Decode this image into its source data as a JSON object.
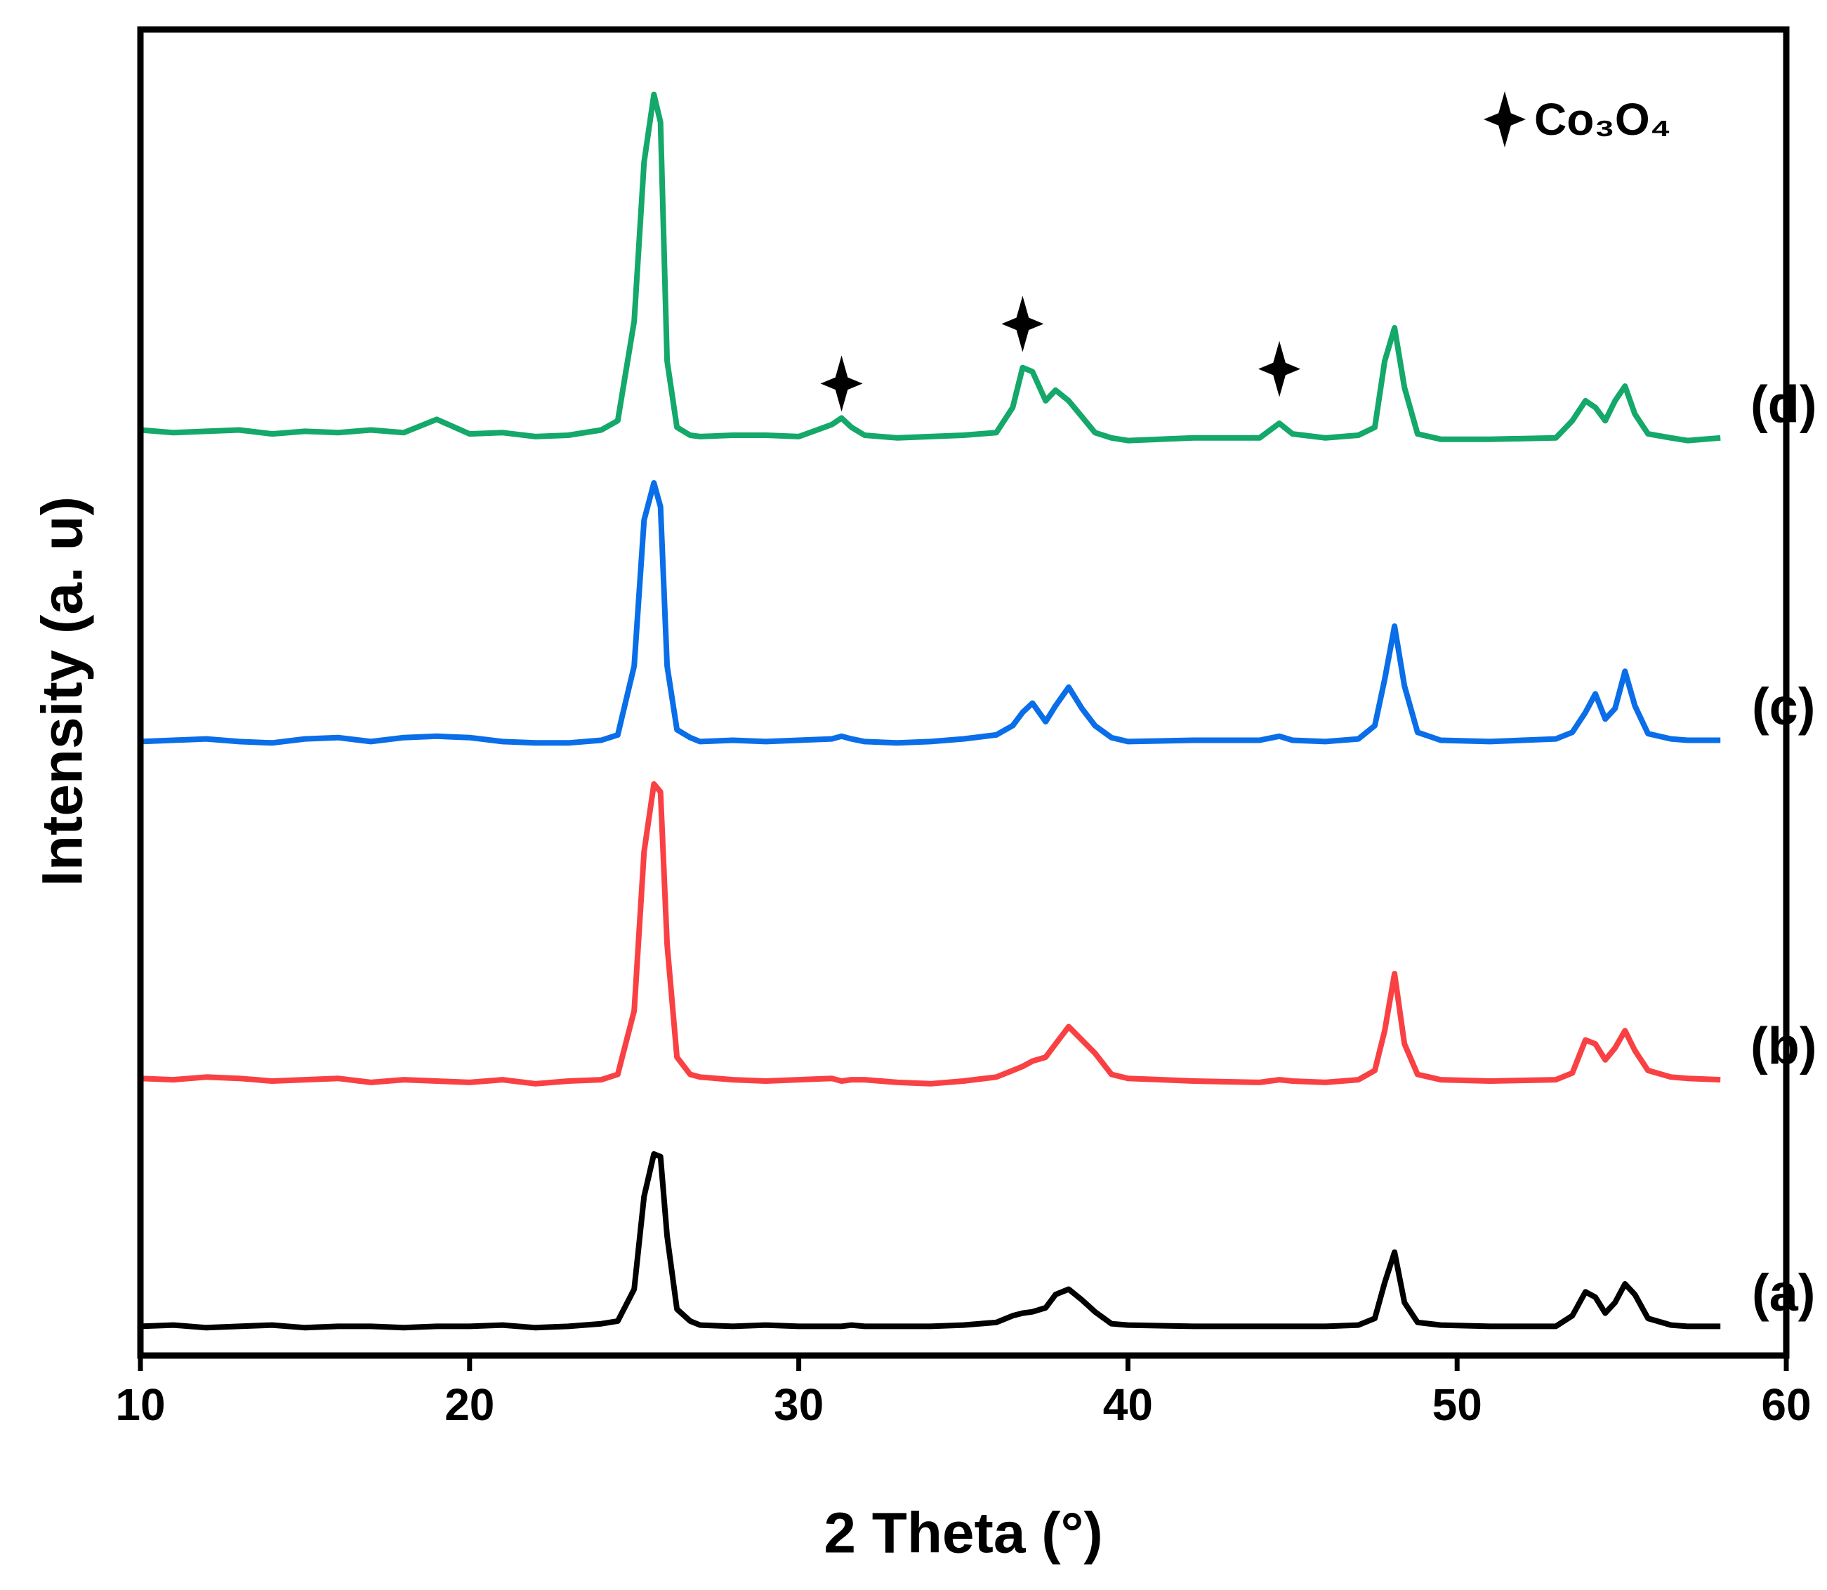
{
  "chart_data": {
    "type": "line",
    "xlabel": "2 Theta (°)",
    "ylabel": "Intensity (a. u)",
    "xlim": [
      10,
      60
    ],
    "xticks": [
      10,
      20,
      30,
      40,
      50,
      60
    ],
    "ylim": [
      0,
      100
    ],
    "x": [
      10,
      11,
      12,
      13,
      14,
      15,
      16,
      17,
      18,
      19,
      20,
      21,
      22,
      23,
      24,
      24.5,
      25,
      25.3,
      25.6,
      25.8,
      26,
      26.3,
      26.7,
      27,
      28,
      29,
      30,
      31,
      31.3,
      31.6,
      32,
      33,
      34,
      35,
      36,
      36.5,
      36.8,
      37.1,
      37.5,
      37.8,
      38.2,
      38.6,
      39,
      39.5,
      40,
      42,
      44,
      44.6,
      45,
      46,
      47,
      47.5,
      47.8,
      48.1,
      48.4,
      48.8,
      49.5,
      51,
      53,
      53.5,
      53.9,
      54.2,
      54.5,
      54.8,
      55.1,
      55.4,
      55.8,
      56.5,
      57,
      58
    ],
    "series": [
      {
        "name": "(a)",
        "color": "#000000",
        "values": [
          2.2,
          2.3,
          2.1,
          2.2,
          2.3,
          2.1,
          2.2,
          2.2,
          2.1,
          2.2,
          2.2,
          2.3,
          2.1,
          2.2,
          2.4,
          2.6,
          5,
          12,
          15.2,
          15,
          9,
          3.5,
          2.6,
          2.3,
          2.2,
          2.3,
          2.2,
          2.2,
          2.2,
          2.3,
          2.2,
          2.2,
          2.2,
          2.3,
          2.5,
          3.0,
          3.2,
          3.3,
          3.6,
          4.6,
          5.0,
          4.2,
          3.3,
          2.4,
          2.3,
          2.2,
          2.2,
          2.2,
          2.2,
          2.2,
          2.3,
          2.8,
          5.5,
          7.8,
          4.0,
          2.5,
          2.3,
          2.2,
          2.2,
          3.0,
          4.8,
          4.4,
          3.2,
          4.0,
          5.4,
          4.6,
          2.8,
          2.3,
          2.2,
          2.2
        ]
      },
      {
        "name": "(b)",
        "color": "#f94144",
        "values": [
          20.9,
          20.8,
          21.0,
          20.9,
          20.7,
          20.8,
          20.9,
          20.6,
          20.8,
          20.7,
          20.6,
          20.8,
          20.5,
          20.7,
          20.8,
          21.2,
          26,
          38,
          43.1,
          42.5,
          31,
          22.5,
          21.2,
          21.0,
          20.8,
          20.7,
          20.8,
          20.9,
          20.7,
          20.8,
          20.8,
          20.6,
          20.5,
          20.7,
          21.0,
          21.5,
          21.8,
          22.2,
          22.5,
          23.5,
          24.8,
          23.8,
          22.8,
          21.2,
          20.9,
          20.7,
          20.6,
          20.8,
          20.7,
          20.6,
          20.8,
          21.5,
          24.5,
          28.8,
          23.5,
          21.2,
          20.8,
          20.7,
          20.8,
          21.3,
          23.8,
          23.5,
          22.3,
          23.2,
          24.5,
          23.0,
          21.5,
          21.0,
          20.9,
          20.8
        ]
      },
      {
        "name": "(c)",
        "color": "#0a6ee8",
        "values": [
          46.3,
          46.4,
          46.5,
          46.3,
          46.2,
          46.5,
          46.6,
          46.3,
          46.6,
          46.7,
          46.6,
          46.3,
          46.2,
          46.2,
          46.4,
          46.8,
          52,
          63,
          65.8,
          64,
          52,
          47.2,
          46.6,
          46.3,
          46.4,
          46.3,
          46.4,
          46.5,
          46.7,
          46.5,
          46.3,
          46.2,
          46.3,
          46.5,
          46.8,
          47.5,
          48.5,
          49.2,
          47.8,
          49.0,
          50.4,
          48.8,
          47.5,
          46.6,
          46.3,
          46.4,
          46.4,
          46.7,
          46.4,
          46.3,
          46.5,
          47.5,
          51,
          55,
          50.5,
          47,
          46.4,
          46.3,
          46.5,
          47.0,
          48.5,
          49.9,
          48.0,
          48.8,
          51.6,
          49.0,
          46.9,
          46.5,
          46.4,
          46.4
        ]
      },
      {
        "name": "(d)",
        "color": "#14a86a",
        "values": [
          69.8,
          69.6,
          69.7,
          69.8,
          69.5,
          69.7,
          69.6,
          69.8,
          69.6,
          70.6,
          69.5,
          69.6,
          69.3,
          69.4,
          69.8,
          70.5,
          78,
          90,
          95.1,
          93,
          75,
          70.0,
          69.4,
          69.3,
          69.4,
          69.4,
          69.3,
          70.2,
          70.7,
          70.0,
          69.4,
          69.2,
          69.3,
          69.4,
          69.6,
          71.5,
          74.5,
          74.2,
          72.0,
          72.8,
          72.0,
          70.8,
          69.6,
          69.2,
          69.0,
          69.2,
          69.2,
          70.3,
          69.5,
          69.2,
          69.4,
          70.0,
          75,
          77.5,
          73,
          69.5,
          69.1,
          69.1,
          69.2,
          70.5,
          72.0,
          71.5,
          70.5,
          72,
          73.1,
          71,
          69.5,
          69.2,
          69.0,
          69.2
        ]
      }
    ],
    "markers": {
      "label": "Co₃O₄",
      "x": [
        31.3,
        36.8,
        44.6
      ],
      "y": [
        73.3,
        77.8,
        74.4
      ]
    }
  }
}
